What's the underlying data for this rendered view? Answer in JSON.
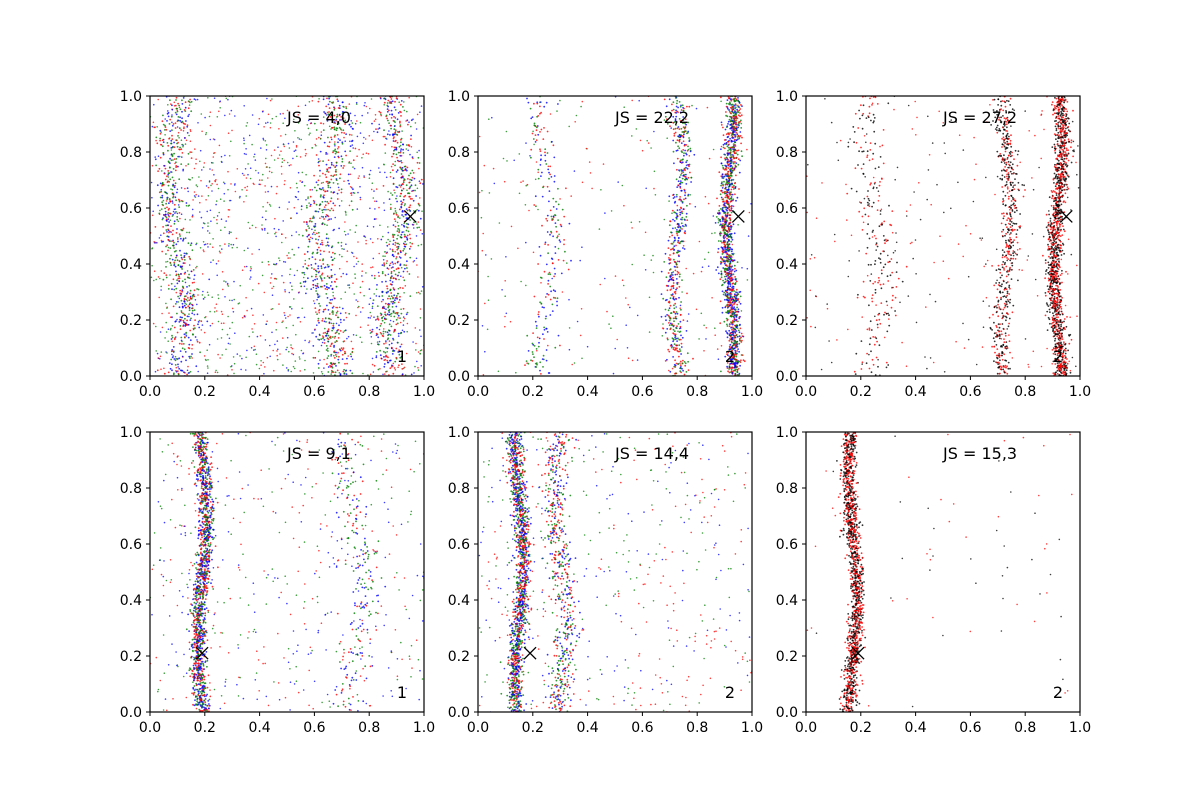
{
  "chart_data": {
    "type": "scatter",
    "grid": false,
    "legend": "none",
    "xlim": [
      0.0,
      1.0
    ],
    "ylim": [
      0.0,
      1.0
    ],
    "xticks": [
      "0.0",
      "0.2",
      "0.4",
      "0.6",
      "0.8",
      "1.0"
    ],
    "yticks": [
      "0.0",
      "0.2",
      "0.4",
      "0.6",
      "0.8",
      "1.0"
    ],
    "panels": [
      {
        "annotation": "JS = 4,0",
        "corner_label": "1",
        "marker": {
          "x": 0.95,
          "y": 0.57
        },
        "colors": [
          "#0000ff",
          "#ff0000",
          "#008000"
        ],
        "bands": [
          {
            "center": 0.1,
            "width": 0.05,
            "density": "medium"
          },
          {
            "center": 0.65,
            "width": 0.06,
            "density": "medium"
          },
          {
            "center": 0.9,
            "width": 0.05,
            "density": "medium"
          }
        ],
        "background_density": "high"
      },
      {
        "annotation": "JS = 22,2",
        "corner_label": "2",
        "marker": {
          "x": 0.95,
          "y": 0.57
        },
        "colors": [
          "#0000ff",
          "#ff0000",
          "#008000"
        ],
        "bands": [
          {
            "center": 0.92,
            "width": 0.025,
            "density": "high"
          },
          {
            "center": 0.73,
            "width": 0.03,
            "density": "medium"
          },
          {
            "center": 0.25,
            "width": 0.05,
            "density": "low"
          }
        ],
        "background_density": "low"
      },
      {
        "annotation": "JS = 27,2",
        "corner_label": "2",
        "marker": {
          "x": 0.95,
          "y": 0.57
        },
        "colors": [
          "#000000",
          "#ff0000"
        ],
        "bands": [
          {
            "center": 0.92,
            "width": 0.025,
            "density": "high"
          },
          {
            "center": 0.73,
            "width": 0.03,
            "density": "medium"
          },
          {
            "center": 0.25,
            "width": 0.06,
            "density": "low"
          }
        ],
        "background_density": "low"
      },
      {
        "annotation": "JS = 9,1",
        "corner_label": "1",
        "marker": {
          "x": 0.19,
          "y": 0.21
        },
        "colors": [
          "#0000ff",
          "#ff0000",
          "#008000"
        ],
        "bands": [
          {
            "center": 0.19,
            "width": 0.025,
            "density": "high"
          },
          {
            "center": 0.75,
            "width": 0.06,
            "density": "low"
          }
        ],
        "background_density": "medium"
      },
      {
        "annotation": "JS = 14,4",
        "corner_label": "2",
        "marker": {
          "x": 0.19,
          "y": 0.21
        },
        "colors": [
          "#0000ff",
          "#ff0000",
          "#008000"
        ],
        "bands": [
          {
            "center": 0.15,
            "width": 0.025,
            "density": "high"
          },
          {
            "center": 0.3,
            "width": 0.04,
            "density": "medium"
          }
        ],
        "background_density": "medium"
      },
      {
        "annotation": "JS = 15,3",
        "corner_label": "2",
        "marker": {
          "x": 0.19,
          "y": 0.21
        },
        "colors": [
          "#000000",
          "#ff0000"
        ],
        "bands": [
          {
            "center": 0.17,
            "width": 0.025,
            "density": "high"
          }
        ],
        "background_density": "very-low"
      }
    ]
  }
}
